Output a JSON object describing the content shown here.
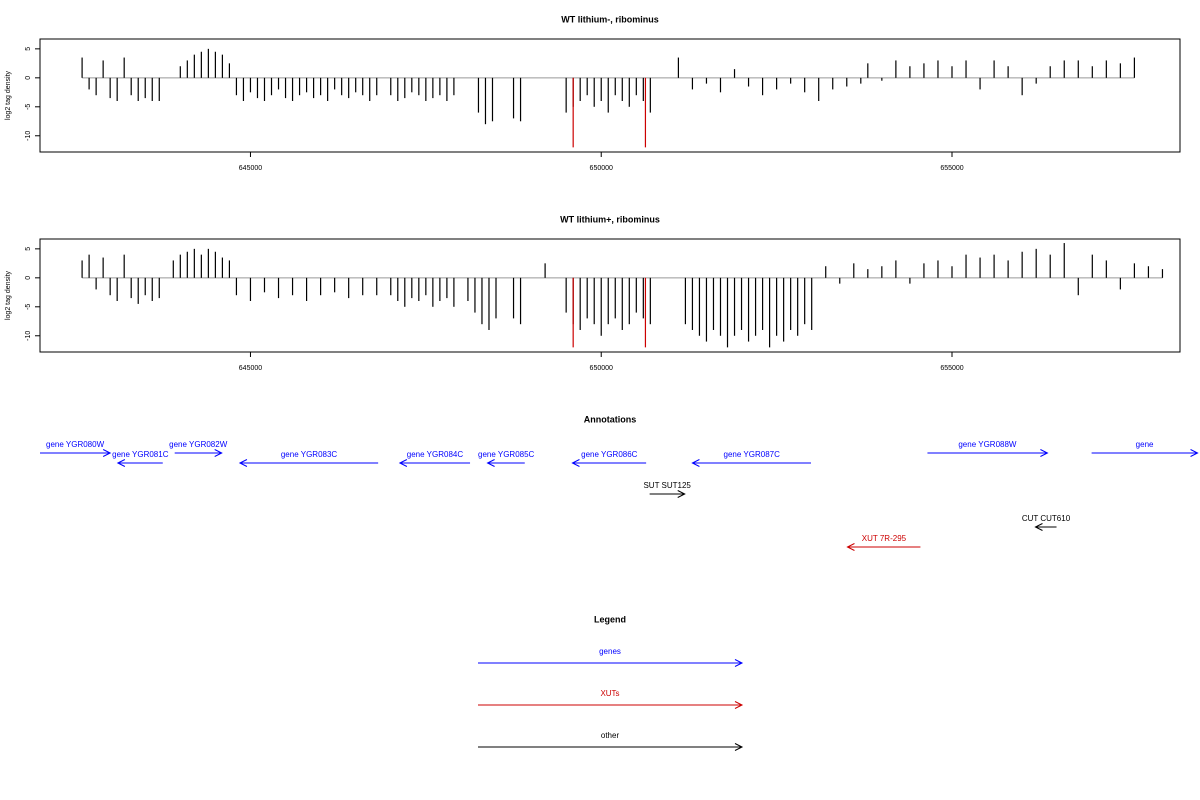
{
  "chart_data": [
    {
      "type": "bar",
      "title": "WT lithium-, ribominus",
      "ylabel": "log2 tag density",
      "color": "#000000",
      "xlim": [
        642000,
        658250
      ],
      "ylim": [
        -12.8,
        6.7
      ],
      "xticks": [
        645000,
        650000,
        655000
      ],
      "yticks": [
        5,
        0,
        -5,
        -10
      ],
      "x": [
        642600,
        642700,
        642800,
        642900,
        643000,
        643100,
        643200,
        643300,
        643400,
        643500,
        643600,
        643700,
        644000,
        644100,
        644200,
        644300,
        644400,
        644500,
        644600,
        644700,
        644800,
        644900,
        645000,
        645100,
        645200,
        645300,
        645400,
        645500,
        645600,
        645700,
        645800,
        645900,
        646000,
        646100,
        646200,
        646300,
        646400,
        646500,
        646600,
        646700,
        646800,
        647000,
        647100,
        647200,
        647300,
        647400,
        647500,
        647600,
        647700,
        647800,
        647900,
        648250,
        648350,
        648450,
        648750,
        648850,
        649500,
        649600,
        649700,
        649800,
        649900,
        650000,
        650100,
        650200,
        650300,
        650400,
        650500,
        650600,
        650700,
        651100,
        651300,
        651500,
        651700,
        651900,
        652100,
        652300,
        652500,
        652700,
        652900,
        653100,
        653300,
        653500,
        653700,
        653800,
        654000,
        654200,
        654400,
        654600,
        654800,
        655000,
        655200,
        655400,
        655600,
        655800,
        656000,
        656200,
        656400,
        656600,
        656800,
        657000,
        657200,
        657400,
        657600
      ],
      "values": [
        3.5,
        -2,
        -3,
        3,
        -3.5,
        -4,
        3.5,
        -3,
        -4,
        -3.5,
        -4,
        -4,
        2,
        3,
        4,
        4.5,
        5,
        4.5,
        4,
        2.5,
        -3,
        -4,
        -2.5,
        -3.5,
        -4,
        -3,
        -2,
        -3.5,
        -4,
        -3,
        -2.5,
        -3.5,
        -3,
        -4,
        -2,
        -3,
        -3.5,
        -2.5,
        -3,
        -4,
        -3,
        -3,
        -4,
        -3.5,
        -2.5,
        -3,
        -4,
        -3.5,
        -3,
        -4,
        -3,
        -6,
        -8,
        -7.5,
        -7,
        -7.5,
        -6,
        -5,
        -4,
        -3,
        -5,
        -4,
        -6,
        -3,
        -4,
        -5,
        -3,
        -4,
        -6,
        3.5,
        -2,
        -1,
        -2.5,
        1.5,
        -1.5,
        -3,
        -2,
        -1,
        -2.5,
        -4,
        -2,
        -1.5,
        -1,
        2.5,
        -0.5,
        3,
        2,
        2.5,
        3,
        2,
        3,
        -2,
        3,
        2,
        -3,
        -1,
        2,
        3,
        3,
        2,
        3,
        2.5,
        3.5
      ],
      "markers": {
        "color": "#cc0000",
        "x": [
          649600,
          650630
        ],
        "values": [
          -12,
          -12
        ]
      }
    },
    {
      "type": "bar",
      "title": "WT lithium+, ribominus",
      "ylabel": "log2 tag density",
      "color": "#000000",
      "xlim": [
        642000,
        658250
      ],
      "ylim": [
        -12.8,
        6.7
      ],
      "xticks": [
        645000,
        650000,
        655000
      ],
      "yticks": [
        5,
        0,
        -5,
        -10
      ],
      "x": [
        642600,
        642700,
        642800,
        642900,
        643000,
        643100,
        643200,
        643300,
        643400,
        643500,
        643600,
        643700,
        643900,
        644000,
        644100,
        644200,
        644300,
        644400,
        644500,
        644600,
        644700,
        644800,
        645000,
        645200,
        645400,
        645600,
        645800,
        646000,
        646200,
        646400,
        646600,
        646800,
        647000,
        647100,
        647200,
        647300,
        647400,
        647500,
        647600,
        647700,
        647800,
        647900,
        648100,
        648200,
        648300,
        648400,
        648500,
        648750,
        648850,
        649200,
        649500,
        649600,
        649700,
        649800,
        649900,
        650000,
        650100,
        650200,
        650300,
        650400,
        650500,
        650600,
        650700,
        651200,
        651300,
        651400,
        651500,
        651600,
        651700,
        651800,
        651900,
        652000,
        652100,
        652200,
        652300,
        652400,
        652500,
        652600,
        652700,
        652800,
        652900,
        653000,
        653200,
        653400,
        653600,
        653800,
        654000,
        654200,
        654400,
        654600,
        654800,
        655000,
        655200,
        655400,
        655600,
        655800,
        656000,
        656200,
        656400,
        656600,
        656800,
        657000,
        657200,
        657400,
        657600,
        657800,
        658000
      ],
      "values": [
        3,
        4,
        -2,
        3.5,
        -3,
        -4,
        4,
        -3.5,
        -4.5,
        -3,
        -4,
        -3.5,
        3,
        4,
        4.5,
        5,
        4,
        5,
        4.5,
        3.5,
        3,
        -3,
        -4,
        -2.5,
        -3.5,
        -3,
        -4,
        -3,
        -2.5,
        -3.5,
        -3,
        -3,
        -3,
        -4,
        -5,
        -3.5,
        -4,
        -3,
        -5,
        -4,
        -3.5,
        -5,
        -4,
        -6,
        -8,
        -9,
        -7,
        -7,
        -8,
        2.5,
        -6,
        -8,
        -9,
        -7,
        -8,
        -10,
        -8,
        -7,
        -9,
        -8,
        -6,
        -7,
        -8,
        -8,
        -9,
        -10,
        -11,
        -9,
        -10,
        -12,
        -10,
        -9,
        -11,
        -10,
        -9,
        -12,
        -10,
        -11,
        -9,
        -10,
        -8,
        -9,
        2,
        -1,
        2.5,
        1.5,
        2,
        3,
        -1,
        2.5,
        3,
        2,
        4,
        3.5,
        4,
        3,
        4.5,
        5,
        4,
        6,
        -3,
        4,
        3,
        -2,
        2.5,
        2,
        1.5
      ],
      "markers": {
        "color": "#cc0000",
        "x": [
          649600,
          650630
        ],
        "values": [
          -12,
          -12
        ]
      }
    }
  ],
  "annotations": {
    "title": "Annotations",
    "features": [
      {
        "label": "gene YGR080W",
        "start": 642000,
        "end": 643000,
        "strand": "+",
        "color": "#0000ff"
      },
      {
        "label": "gene YGR081C",
        "start": 643110,
        "end": 643750,
        "strand": "-",
        "color": "#0000ff"
      },
      {
        "label": "gene YGR082W",
        "start": 643920,
        "end": 644590,
        "strand": "+",
        "color": "#0000ff"
      },
      {
        "label": "gene YGR083C",
        "start": 644850,
        "end": 646820,
        "strand": "-",
        "color": "#0000ff"
      },
      {
        "label": "gene YGR084C",
        "start": 647130,
        "end": 648130,
        "strand": "-",
        "color": "#0000ff"
      },
      {
        "label": "gene YGR085C",
        "start": 648380,
        "end": 648910,
        "strand": "-",
        "color": "#0000ff"
      },
      {
        "label": "gene YGR086C",
        "start": 649590,
        "end": 650640,
        "strand": "-",
        "color": "#0000ff"
      },
      {
        "label": "gene YGR087C",
        "start": 651300,
        "end": 652990,
        "strand": "-",
        "color": "#0000ff"
      },
      {
        "label": "gene YGR088W",
        "start": 654650,
        "end": 656360,
        "strand": "+",
        "color": "#0000ff"
      },
      {
        "label": "gene",
        "start": 656990,
        "end": 658500,
        "strand": "+",
        "color": "#0000ff"
      },
      {
        "label": "SUT SUT125",
        "start": 650690,
        "end": 651190,
        "strand": "+",
        "color": "#000000"
      },
      {
        "label": "CUT CUT610",
        "start": 656190,
        "end": 656490,
        "strand": "-",
        "color": "#000000"
      },
      {
        "label": "XUT 7R-295",
        "start": 653510,
        "end": 654550,
        "strand": "-",
        "color": "#cc0000"
      }
    ]
  },
  "legend": {
    "title": "Legend",
    "items": [
      {
        "label": "genes",
        "color": "#0000ff"
      },
      {
        "label": "XUTs",
        "color": "#cc0000"
      },
      {
        "label": "other",
        "color": "#000000"
      }
    ]
  }
}
